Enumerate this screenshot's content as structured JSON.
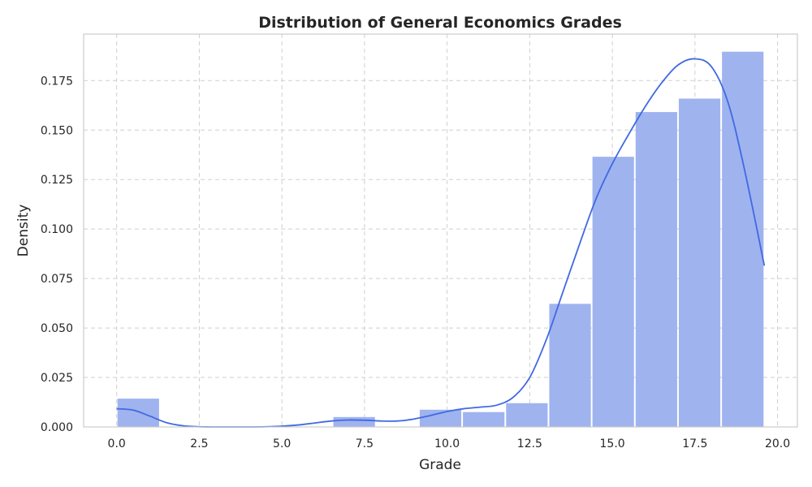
{
  "chart_data": {
    "type": "bar",
    "title": "Distribution of General Economics Grades",
    "xlabel": "Grade",
    "ylabel": "Density",
    "xlim": [
      -1.0,
      20.6
    ],
    "ylim": [
      0,
      0.1985
    ],
    "xticks": [
      "0.0",
      "2.5",
      "5.0",
      "7.5",
      "10.0",
      "12.5",
      "15.0",
      "17.5",
      "20.0"
    ],
    "xtick_values": [
      0,
      2.5,
      5,
      7.5,
      10,
      12.5,
      15,
      17.5,
      20
    ],
    "yticks": [
      "0.000",
      "0.025",
      "0.050",
      "0.075",
      "0.100",
      "0.125",
      "0.150",
      "0.175"
    ],
    "ytick_values": [
      0,
      0.025,
      0.05,
      0.075,
      0.1,
      0.125,
      0.15,
      0.175
    ],
    "grid": true,
    "histogram": {
      "bin_start": 0.0,
      "bin_width": 1.3067,
      "values": [
        0.0143,
        0,
        0,
        0,
        0,
        0.005,
        0,
        0.0087,
        0.0075,
        0.012,
        0.0622,
        0.1365,
        0.1591,
        0.1659,
        0.1896
      ],
      "color": "#9fb3ef"
    },
    "kde": {
      "color": "#4169e1",
      "x": [
        0,
        0.5,
        1,
        1.5,
        2,
        2.5,
        3,
        3.5,
        4,
        4.5,
        5,
        5.5,
        6,
        6.5,
        7,
        7.5,
        8,
        8.5,
        9,
        9.5,
        10,
        10.5,
        11,
        11.5,
        12,
        12.5,
        13,
        13.5,
        14,
        14.5,
        15,
        15.5,
        16,
        16.5,
        17,
        17.5,
        18,
        18.5,
        19,
        19.6
      ],
      "y": [
        0.0092,
        0.0085,
        0.0055,
        0.0022,
        0.0006,
        0.0001,
        0.0,
        0.0,
        0.0,
        0.0001,
        0.0004,
        0.001,
        0.002,
        0.003,
        0.0035,
        0.0034,
        0.003,
        0.003,
        0.004,
        0.0058,
        0.0078,
        0.0092,
        0.01,
        0.011,
        0.015,
        0.025,
        0.044,
        0.068,
        0.092,
        0.115,
        0.133,
        0.148,
        0.162,
        0.174,
        0.183,
        0.186,
        0.182,
        0.164,
        0.13,
        0.0815
      ]
    }
  }
}
